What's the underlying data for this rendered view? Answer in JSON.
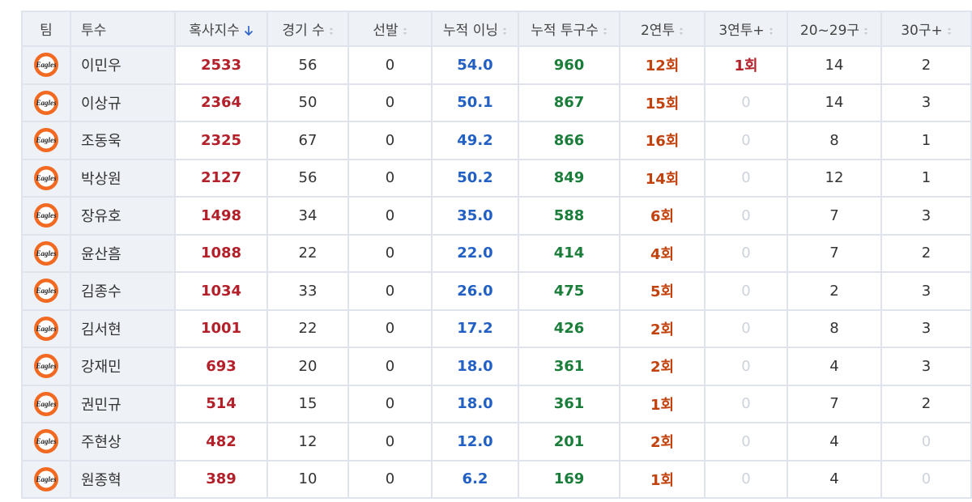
{
  "table": {
    "header": [
      "팀",
      "투수",
      "혹사지수",
      "경기 수",
      "선발",
      "누적 이닝",
      "누적 투구수",
      "2연투",
      "3연투+",
      "20~29구",
      "30구+"
    ],
    "rows": [
      [
        "Eagles",
        "이민우",
        "2533",
        "56",
        "0",
        "54.0",
        "960",
        "12회",
        "1회",
        "14",
        "2"
      ],
      [
        "Eagles",
        "이상규",
        "2364",
        "50",
        "0",
        "50.1",
        "867",
        "15회",
        "0",
        "14",
        "3"
      ],
      [
        "Eagles",
        "조동욱",
        "2325",
        "67",
        "0",
        "49.2",
        "866",
        "16회",
        "0",
        "8",
        "1"
      ],
      [
        "Eagles",
        "박상원",
        "2127",
        "56",
        "0",
        "50.2",
        "849",
        "14회",
        "0",
        "12",
        "1"
      ],
      [
        "Eagles",
        "장유호",
        "1498",
        "34",
        "0",
        "35.0",
        "588",
        "6회",
        "0",
        "7",
        "3"
      ],
      [
        "Eagles",
        "윤산흠",
        "1088",
        "22",
        "0",
        "22.0",
        "414",
        "4회",
        "0",
        "7",
        "2"
      ],
      [
        "Eagles",
        "김종수",
        "1034",
        "33",
        "0",
        "26.0",
        "475",
        "5회",
        "0",
        "2",
        "3"
      ],
      [
        "Eagles",
        "김서현",
        "1001",
        "22",
        "0",
        "17.2",
        "426",
        "2회",
        "0",
        "8",
        "3"
      ],
      [
        "Eagles",
        "강재민",
        "693",
        "20",
        "0",
        "18.0",
        "361",
        "2회",
        "0",
        "4",
        "3"
      ],
      [
        "Eagles",
        "권민규",
        "514",
        "15",
        "0",
        "18.0",
        "361",
        "1회",
        "0",
        "7",
        "2"
      ],
      [
        "Eagles",
        "주현상",
        "482",
        "12",
        "0",
        "12.0",
        "201",
        "2회",
        "0",
        "4",
        "0"
      ],
      [
        "Eagles",
        "원종혁",
        "389",
        "10",
        "0",
        "6.2",
        "169",
        "1회",
        "0",
        "4",
        "0"
      ]
    ]
  }
}
